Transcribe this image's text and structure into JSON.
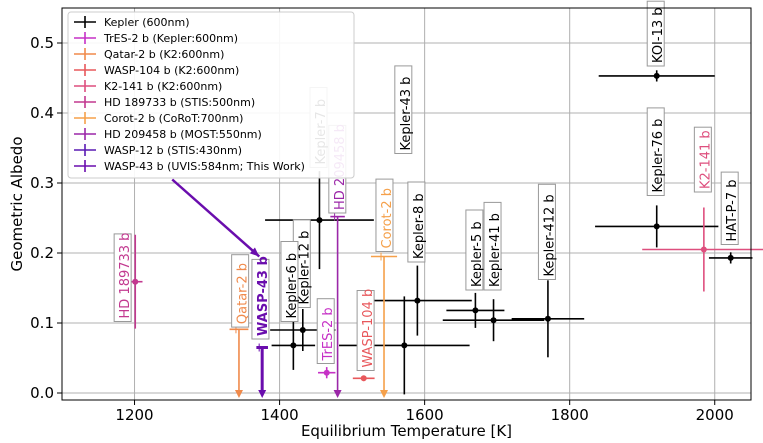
{
  "chart_data": {
    "type": "scatter",
    "title": "",
    "xlabel": "Equilibrium Temperature [K]",
    "ylabel": "Geometric Albedo",
    "xlim": [
      1100,
      2050
    ],
    "ylim": [
      -0.01,
      0.55
    ],
    "xticks": [
      1200,
      1400,
      1600,
      1800,
      2000
    ],
    "yticks": [
      0.0,
      0.1,
      0.2,
      0.3,
      0.4,
      0.5
    ],
    "x_tick_labels": [
      "1200",
      "1400",
      "1600",
      "1800",
      "2000"
    ],
    "y_tick_labels": [
      "0.0",
      "0.1",
      "0.2",
      "0.3",
      "0.4",
      "0.5"
    ],
    "grid": true,
    "legend_position": "top-left",
    "legend": [
      {
        "label": "Kepler (600nm)",
        "color": "#000000"
      },
      {
        "label": "TrES-2 b (Kepler:600nm)",
        "color": "#c630c6"
      },
      {
        "label": "Qatar-2 b (K2:600nm)",
        "color": "#f08a4b"
      },
      {
        "label": "WASP-104 b (K2:600nm)",
        "color": "#e8585c"
      },
      {
        "label": "K2-141 b (K2:600nm)",
        "color": "#de4f7e"
      },
      {
        "label": "HD 189733 b (STIS:500nm)",
        "color": "#c2388f"
      },
      {
        "label": "Corot-2 b (CoRoT:700nm)",
        "color": "#f5a04a"
      },
      {
        "label": "HD 209458 b (MOST:550nm)",
        "color": "#9b27a8"
      },
      {
        "label": "WASP-12 b (STIS:430nm)",
        "color": "#5a1ab4"
      },
      {
        "label": "WASP-43 b (UVIS:584nm; This Work)",
        "color": "#6a0dad"
      }
    ],
    "points": [
      {
        "name": "KOI-13 b",
        "x": 1920,
        "y": 0.453,
        "xerr": 80,
        "yerr": 0.008,
        "color": "#000000",
        "type": "point"
      },
      {
        "name": "Kepler-7 b",
        "x": 1455,
        "y": 0.247,
        "xerr": 75,
        "yerr": 0.07,
        "color": "#000000",
        "type": "point"
      },
      {
        "name": "Kepler-76 b",
        "x": 1920,
        "y": 0.238,
        "xerr": 85,
        "yerr": 0.03,
        "color": "#000000",
        "type": "point"
      },
      {
        "name": "HAT-P-7 b",
        "x": 2022,
        "y": 0.193,
        "xerr": 30,
        "yerr": 0.008,
        "color": "#000000",
        "type": "point"
      },
      {
        "name": "Kepler-8 b",
        "x": 1590,
        "y": 0.132,
        "xerr": 75,
        "yerr": 0.05,
        "color": "#000000",
        "type": "point"
      },
      {
        "name": "Kepler-5 b",
        "x": 1670,
        "y": 0.118,
        "xerr": 40,
        "yerr": 0.025,
        "color": "#000000",
        "type": "point"
      },
      {
        "name": "Kepler-41 b",
        "x": 1695,
        "y": 0.104,
        "xerr": 70,
        "yerr": 0.03,
        "color": "#000000",
        "type": "point"
      },
      {
        "name": "Kepler-412 b",
        "x": 1770,
        "y": 0.106,
        "xerr": 50,
        "yerr": 0.055,
        "color": "#000000",
        "type": "point"
      },
      {
        "name": "Kepler-12 b",
        "x": 1432,
        "y": 0.09,
        "xerr": 45,
        "yerr": 0.03,
        "color": "#000000",
        "type": "point"
      },
      {
        "name": "Kepler-6 b",
        "x": 1419,
        "y": 0.068,
        "xerr": 30,
        "yerr": 0.035,
        "color": "#000000",
        "type": "point"
      },
      {
        "name": "Kepler-43 b",
        "x": 1572,
        "y": 0.068,
        "xerr": 90,
        "yerr": 0.07,
        "color": "#000000",
        "type": "point"
      },
      {
        "name": "TrES-2 b",
        "x": 1465,
        "y": 0.029,
        "xerr": 12,
        "yerr": 0.008,
        "color": "#c630c6",
        "type": "point"
      },
      {
        "name": "WASP-104 b",
        "x": 1516,
        "y": 0.021,
        "xerr": 15,
        "yerr": 0.004,
        "color": "#e8585c",
        "type": "point"
      },
      {
        "name": "K2-141 b",
        "x": 1985,
        "y": 0.205,
        "xerr": 85,
        "yerr": 0.06,
        "color": "#de4f7e",
        "type": "point"
      },
      {
        "name": "HD 189733 b",
        "x": 1201,
        "y": 0.159,
        "xerr": 10,
        "yerr": 0.067,
        "color": "#c2388f",
        "type": "point"
      },
      {
        "name": "Qatar-2 b",
        "x": 1344,
        "y": 0.091,
        "xerr": 13,
        "color": "#f08a4b",
        "type": "upper_limit"
      },
      {
        "name": "Corot-2 b",
        "x": 1544,
        "y": 0.195,
        "xerr": 18,
        "color": "#f5a04a",
        "type": "upper_limit"
      },
      {
        "name": "HD 209458 b",
        "x": 1480,
        "y": 0.252,
        "xerr": 10,
        "color": "#9b27a8",
        "type": "upper_limit"
      },
      {
        "name": "WASP-43 b",
        "x": 1376,
        "y": 0.065,
        "xerr": 8,
        "color": "#6a0dad",
        "type": "upper_limit"
      }
    ],
    "annotations": [
      {
        "name": "KOI-13 b",
        "x": 1920,
        "y": 0.47,
        "color": "#000000"
      },
      {
        "name": "Kepler-7 b",
        "x": 1455,
        "y": 0.325,
        "color": "#000000"
      },
      {
        "name": "Kepler-43 b",
        "x": 1572,
        "y": 0.345,
        "color": "#000000"
      },
      {
        "name": "Kepler-76 b",
        "x": 1920,
        "y": 0.285,
        "color": "#000000"
      },
      {
        "name": "K2-141 b",
        "x": 1985,
        "y": 0.29,
        "color": "#de4f7e"
      },
      {
        "name": "HAT-P-7 b",
        "x": 2022,
        "y": 0.215,
        "color": "#000000"
      },
      {
        "name": "HD 209458 b",
        "x": 1481,
        "y": 0.26,
        "color": "#9b27a8"
      },
      {
        "name": "Corot-2 b",
        "x": 1546,
        "y": 0.205,
        "color": "#f5a04a"
      },
      {
        "name": "Kepler-8 b",
        "x": 1590,
        "y": 0.19,
        "color": "#000000"
      },
      {
        "name": "Kepler-412 b",
        "x": 1770,
        "y": 0.165,
        "color": "#000000"
      },
      {
        "name": "Kepler-5 b",
        "x": 1670,
        "y": 0.15,
        "color": "#000000"
      },
      {
        "name": "Kepler-41 b",
        "x": 1695,
        "y": 0.15,
        "color": "#000000"
      },
      {
        "name": "Kepler-12 b",
        "x": 1432,
        "y": 0.125,
        "color": "#000000"
      },
      {
        "name": "Kepler-6 b",
        "x": 1415,
        "y": 0.105,
        "color": "#000000"
      },
      {
        "name": "HD 189733 b",
        "x": 1185,
        "y": 0.105,
        "color": "#c2388f"
      },
      {
        "name": "Qatar-2 b",
        "x": 1347,
        "y": 0.097,
        "color": "#f08a4b"
      },
      {
        "name": "WASP-43 b",
        "x": 1375,
        "y": 0.08,
        "color": "#6a0dad",
        "bold": true
      },
      {
        "name": "TrES-2 b",
        "x": 1465,
        "y": 0.045,
        "color": "#c630c6"
      },
      {
        "name": "WASP-104 b",
        "x": 1520,
        "y": 0.035,
        "color": "#e8585c"
      }
    ],
    "arrow": {
      "from": [
        1252,
        0.305
      ],
      "to": [
        1372,
        0.195
      ],
      "color": "#6a0dad"
    }
  }
}
